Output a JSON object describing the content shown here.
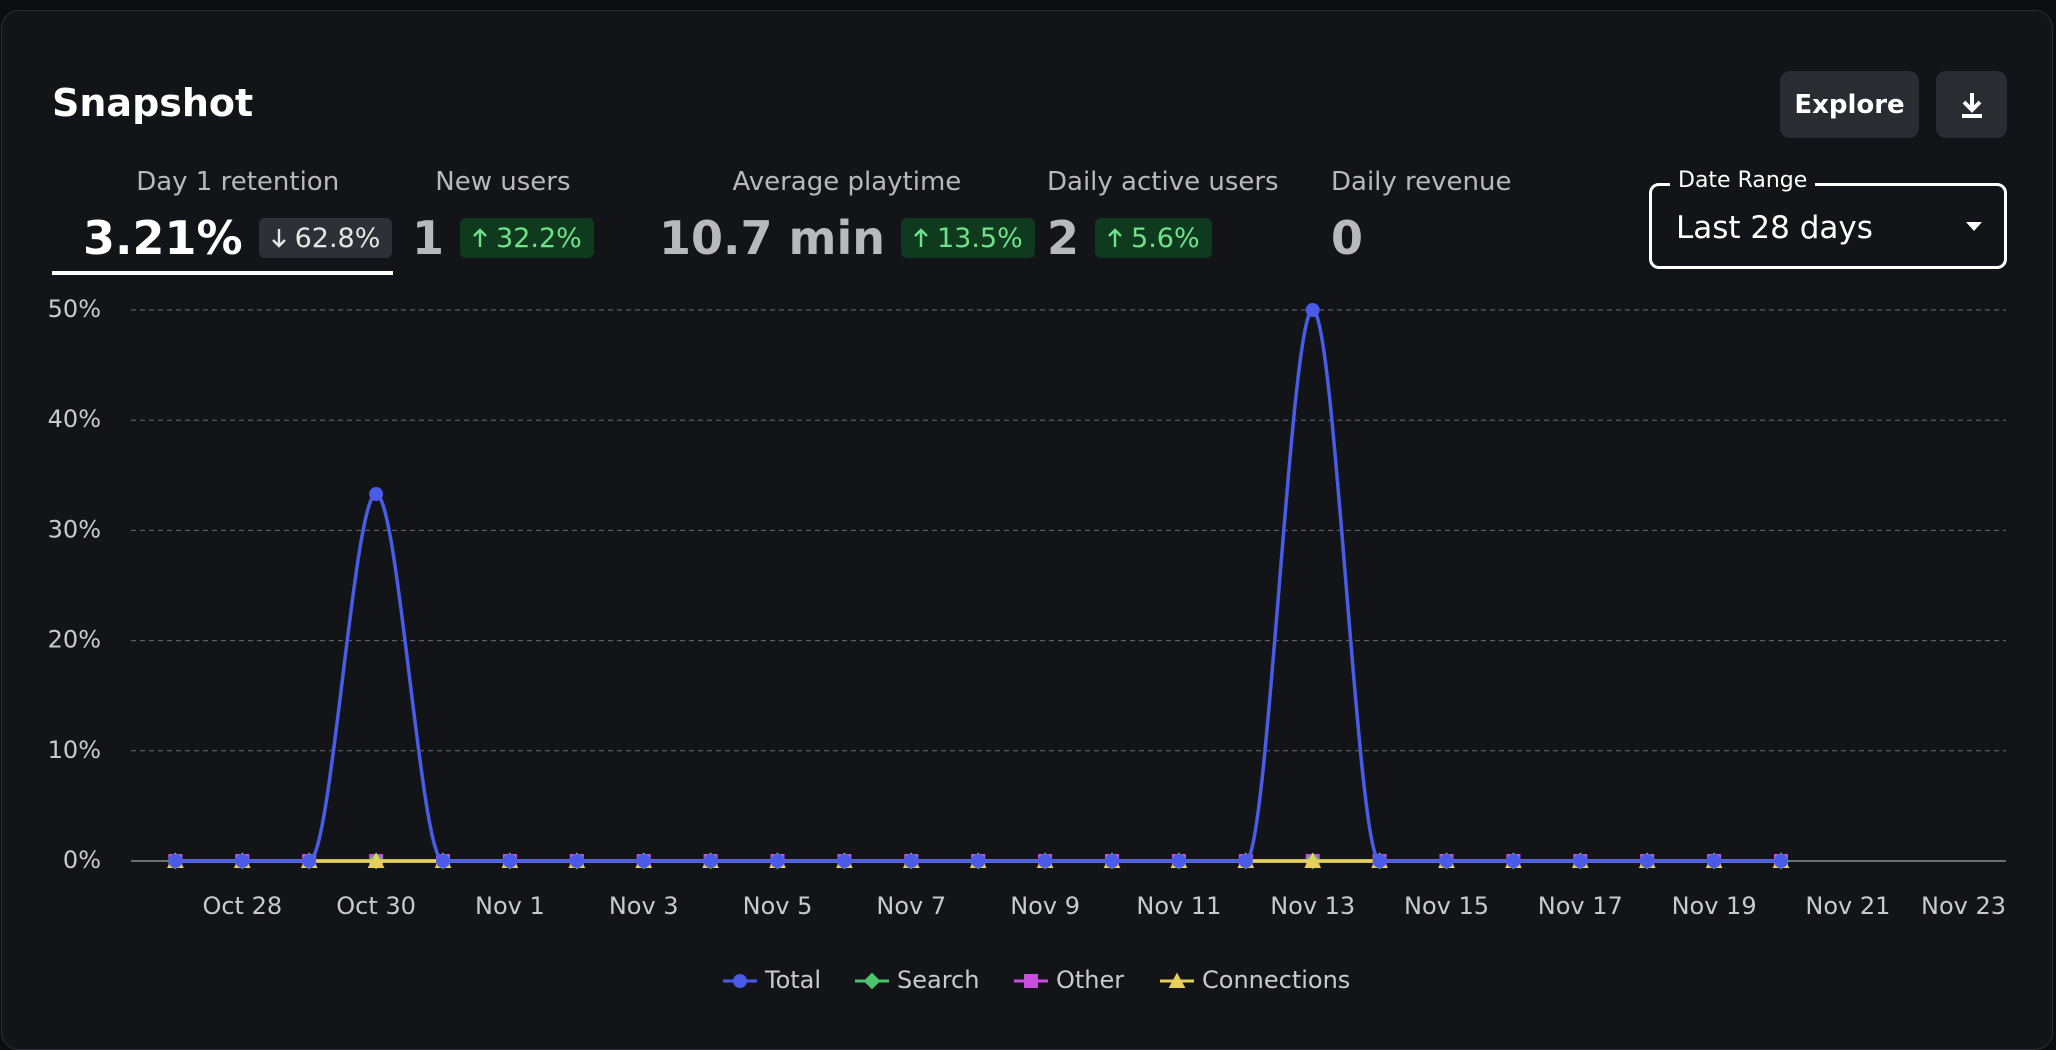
{
  "header": {
    "title": "Snapshot",
    "explore": "Explore"
  },
  "kpis": [
    {
      "label": "Day 1 retention",
      "value": "3.21%",
      "change": "62.8%",
      "direction": "down"
    },
    {
      "label": "New users",
      "value": "1",
      "change": "32.2%",
      "direction": "up"
    },
    {
      "label": "Average playtime",
      "value": "10.7 min",
      "change": "13.5%",
      "direction": "up"
    },
    {
      "label": "Daily active users",
      "value": "2",
      "change": "5.6%",
      "direction": "up"
    },
    {
      "label": "Daily revenue",
      "value": "0"
    }
  ],
  "date_range": {
    "label": "Date Range",
    "value": "Last 28 days"
  },
  "chart_data": {
    "type": "line",
    "categories": [
      null,
      "Oct 28",
      null,
      "Oct 30",
      null,
      "Nov 1",
      null,
      "Nov 3",
      null,
      "Nov 5",
      null,
      "Nov 7",
      null,
      "Nov 9",
      null,
      "Nov 11",
      null,
      "Nov 13",
      null,
      "Nov 15",
      null,
      "Nov 17",
      null,
      "Nov 19",
      null,
      "Nov 21",
      null,
      "Nov 23"
    ],
    "series": [
      {
        "name": "Total",
        "color": "#4a5be8",
        "marker": "circle",
        "values": [
          0,
          0,
          0,
          33.3,
          0,
          0,
          0,
          0,
          0,
          0,
          0,
          0,
          0,
          0,
          0,
          0,
          0,
          50,
          0,
          0,
          0,
          0,
          0,
          0,
          0,
          null,
          null,
          null
        ]
      },
      {
        "name": "Search",
        "color": "#4cc46f",
        "marker": "diamond",
        "values": [
          0,
          0,
          0,
          0,
          0,
          0,
          0,
          0,
          0,
          0,
          0,
          0,
          0,
          0,
          0,
          0,
          0,
          0,
          0,
          0,
          0,
          0,
          0,
          0,
          0,
          null,
          null,
          null
        ]
      },
      {
        "name": "Other",
        "color": "#c94ee0",
        "marker": "square",
        "values": [
          0,
          0,
          0,
          0,
          0,
          0,
          0,
          0,
          0,
          0,
          0,
          0,
          0,
          0,
          0,
          0,
          0,
          0,
          0,
          0,
          0,
          0,
          0,
          0,
          0,
          null,
          null,
          null
        ]
      },
      {
        "name": "Connections",
        "color": "#e6cf5a",
        "marker": "triangle",
        "values": [
          0,
          0,
          0,
          0,
          0,
          0,
          0,
          0,
          0,
          0,
          0,
          0,
          0,
          0,
          0,
          0,
          0,
          0,
          0,
          0,
          0,
          0,
          0,
          0,
          0,
          null,
          null,
          null
        ]
      }
    ],
    "ylim": [
      0,
      50
    ],
    "yticks": [
      {
        "value": 0,
        "label": "0%"
      },
      {
        "value": 10,
        "label": "10%"
      },
      {
        "value": 20,
        "label": "20%"
      },
      {
        "value": 30,
        "label": "30%"
      },
      {
        "value": 40,
        "label": "40%"
      },
      {
        "value": 50,
        "label": "50%"
      }
    ],
    "grid": true
  }
}
